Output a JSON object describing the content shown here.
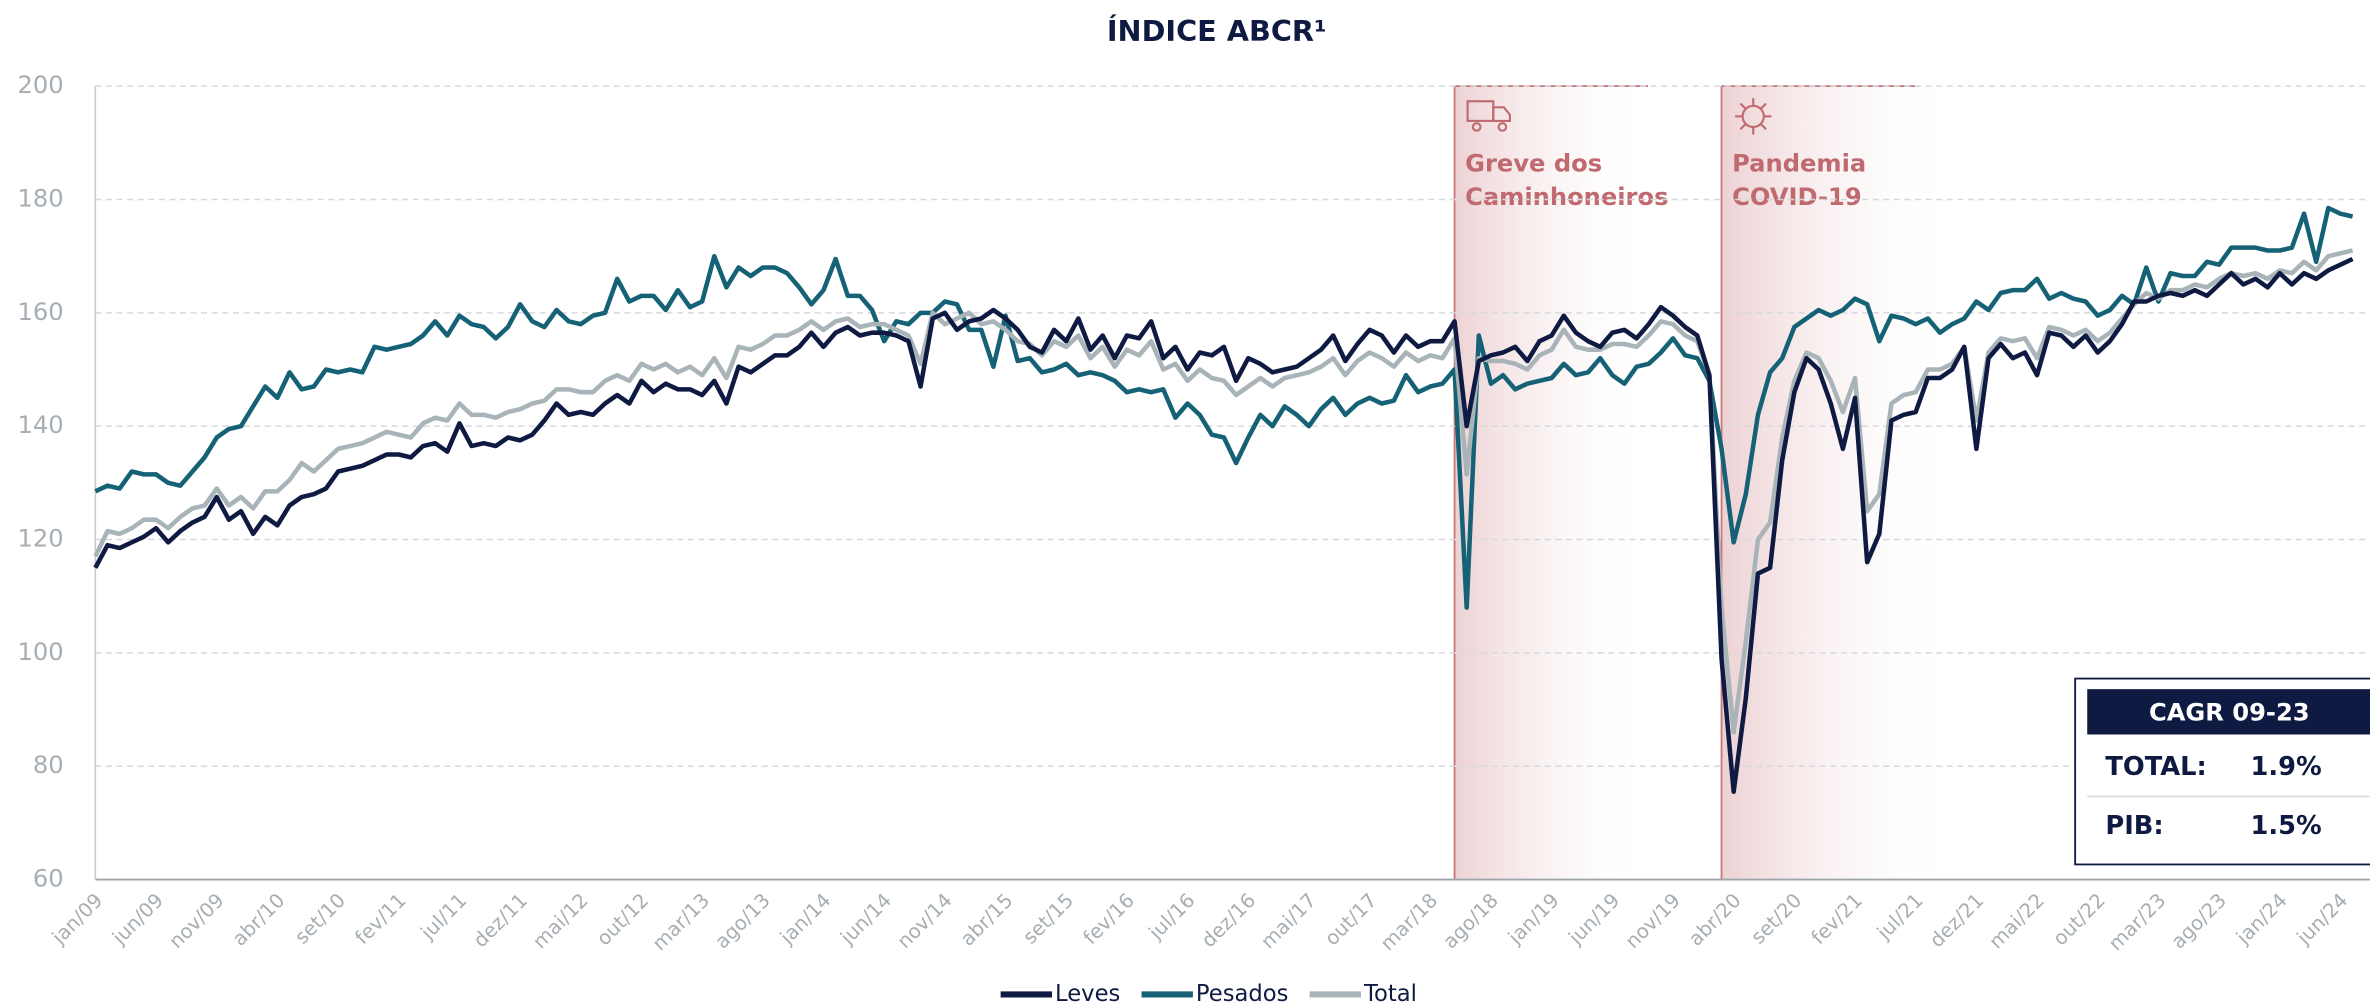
{
  "chart_data": {
    "type": "line",
    "title": "ÍNDICE ABCR¹",
    "categories": [
      "jan/09",
      null,
      null,
      null,
      null,
      "jun/09",
      null,
      null,
      null,
      null,
      "nov/09",
      null,
      null,
      null,
      null,
      "abr/10",
      null,
      null,
      null,
      null,
      "set/10",
      null,
      null,
      null,
      null,
      "fev/11",
      null,
      null,
      null,
      null,
      "jul/11",
      null,
      null,
      null,
      null,
      "dez/11",
      null,
      null,
      null,
      null,
      "mai/12",
      null,
      null,
      null,
      null,
      "out/12",
      null,
      null,
      null,
      null,
      "mar/13",
      null,
      null,
      null,
      null,
      "ago/13",
      null,
      null,
      null,
      null,
      "jan/14",
      null,
      null,
      null,
      null,
      "jun/14",
      null,
      null,
      null,
      null,
      "nov/14",
      null,
      null,
      null,
      null,
      "abr/15",
      null,
      null,
      null,
      null,
      "set/15",
      null,
      null,
      null,
      null,
      "fev/16",
      null,
      null,
      null,
      null,
      "jul/16",
      null,
      null,
      null,
      null,
      "dez/16",
      null,
      null,
      null,
      null,
      "mai/17",
      null,
      null,
      null,
      null,
      "out/17",
      null,
      null,
      null,
      null,
      "mar/18",
      null,
      null,
      null,
      null,
      "ago/18",
      null,
      null,
      null,
      null,
      "jan/19",
      null,
      null,
      null,
      null,
      "jun/19",
      null,
      null,
      null,
      null,
      "nov/19",
      null,
      null,
      null,
      null,
      "abr/20",
      null,
      null,
      null,
      null,
      "set/20",
      null,
      null,
      null,
      null,
      "fev/21",
      null,
      null,
      null,
      null,
      "jul/21",
      null,
      null,
      null,
      null,
      "dez/21",
      null,
      null,
      null,
      null,
      "mai/22",
      null,
      null,
      null,
      null,
      "out/22",
      null,
      null,
      null,
      null,
      "mar/23",
      null,
      null,
      null,
      null,
      "ago/23",
      null,
      null,
      null,
      null,
      "jan/24",
      null,
      null,
      null,
      null,
      "jun/24",
      null
    ],
    "series": [
      {
        "name": "Leves",
        "color": "#0e1a42",
        "values": [
          115,
          119,
          118.5,
          119.5,
          120.5,
          122,
          119.5,
          121.5,
          123,
          124,
          127.5,
          123.5,
          125,
          121,
          124,
          122.5,
          126,
          127.5,
          128,
          129,
          132,
          132.5,
          133,
          134,
          135,
          135,
          134.5,
          136.5,
          137,
          135.5,
          140.5,
          136.5,
          137,
          136.5,
          138,
          137.5,
          138.5,
          141,
          144,
          142,
          142.5,
          142,
          144,
          145.5,
          144,
          148,
          146,
          147.5,
          146.5,
          146.5,
          145.5,
          148,
          144,
          150.5,
          149.5,
          151,
          152.5,
          152.5,
          154,
          156.5,
          154,
          156.5,
          157.5,
          156,
          156.5,
          156.5,
          156,
          155,
          147,
          159,
          160,
          157,
          158.5,
          159,
          160.5,
          159,
          157,
          154,
          153,
          157,
          155,
          159,
          153.5,
          156,
          152,
          156,
          155.5,
          158.5,
          152,
          154,
          150,
          153,
          152.5,
          154,
          148,
          152,
          151,
          149.5,
          150,
          150.5,
          152,
          153.5,
          156,
          151.5,
          154.5,
          157,
          156,
          153,
          156,
          154,
          155,
          155,
          158.5,
          140,
          151.5,
          152.5,
          153,
          154,
          151.5,
          155,
          156,
          159.5,
          156.5,
          155,
          154,
          156.5,
          157,
          155.5,
          158,
          161,
          159.5,
          157.5,
          156,
          149,
          99,
          75.5,
          92,
          114,
          115,
          134,
          146,
          152,
          150,
          144,
          136,
          145,
          116,
          121,
          141,
          142,
          142.5,
          148.5,
          148.5,
          150,
          154,
          136,
          152,
          154.5,
          152,
          153,
          149,
          156.5,
          156,
          154,
          156,
          153,
          155,
          158,
          162,
          162,
          163,
          163.5,
          163,
          164,
          163,
          165,
          167,
          165,
          166,
          164.5,
          167,
          165,
          167,
          166,
          167.5,
          168.5,
          169.5
        ]
      },
      {
        "name": "Pesados",
        "color": "#156175",
        "values": [
          128.5,
          129.5,
          129,
          132,
          131.5,
          131.5,
          130,
          129.5,
          132,
          134.5,
          138,
          139.5,
          140,
          143.5,
          147,
          145,
          149.5,
          146.5,
          147,
          150,
          149.5,
          150,
          149.5,
          154,
          153.5,
          154,
          154.5,
          156,
          158.5,
          156,
          159.5,
          158,
          157.5,
          155.5,
          157.5,
          161.5,
          158.5,
          157.5,
          160.5,
          158.5,
          158,
          159.5,
          160,
          166,
          162,
          163,
          163,
          160.5,
          164,
          161,
          162,
          170,
          164.5,
          168,
          166.5,
          168,
          168,
          167,
          164.5,
          161.5,
          164,
          169.5,
          163,
          163,
          160.5,
          155,
          158.5,
          158,
          160,
          160,
          162,
          161.5,
          157,
          157,
          150.5,
          159.5,
          151.5,
          152,
          149.5,
          150,
          151,
          149,
          149.5,
          149,
          148,
          146,
          146.5,
          146,
          146.5,
          141.5,
          144,
          142,
          138.5,
          138,
          133.5,
          138,
          142,
          140,
          143.5,
          142,
          140,
          143,
          145,
          142,
          144,
          145,
          144,
          144.5,
          149,
          146,
          147,
          147.5,
          150,
          108,
          156,
          147.5,
          149,
          146.5,
          147.5,
          148,
          148.5,
          151,
          149,
          149.5,
          152,
          149,
          147.5,
          150.5,
          151,
          153,
          155.5,
          152.5,
          152,
          148,
          136,
          119.5,
          128,
          142,
          149.5,
          152,
          157.5,
          159,
          160.5,
          159.5,
          160.5,
          162.5,
          161.5,
          155,
          159.5,
          159,
          158,
          159,
          156.5,
          158,
          159,
          162,
          160.5,
          163.5,
          164,
          164,
          166,
          162.5,
          163.5,
          162.5,
          162,
          159.5,
          160.5,
          163,
          161.5,
          168,
          162,
          167,
          166.5,
          166.5,
          169,
          168.5,
          171.5,
          171.5,
          171.5,
          171,
          171,
          171.5,
          177.5,
          169,
          178.5,
          177.5,
          177
        ]
      },
      {
        "name": "Total",
        "color": "#a9b4b9",
        "values": [
          117,
          121.5,
          121,
          122,
          123.5,
          123.5,
          122,
          124,
          125.5,
          126,
          129,
          126,
          127.5,
          125.5,
          128.5,
          128.5,
          130.5,
          133.5,
          132,
          134,
          136,
          136.5,
          137,
          138,
          139,
          138.5,
          138,
          140.5,
          141.5,
          141,
          144,
          142,
          142,
          141.5,
          142.5,
          143,
          144,
          144.5,
          146.5,
          146.5,
          146,
          146,
          148,
          149,
          148,
          151,
          150,
          151,
          149.5,
          150.5,
          149,
          152,
          148.5,
          154,
          153.5,
          154.5,
          156,
          156,
          157,
          158.5,
          157,
          158.5,
          159,
          157.5,
          158,
          158,
          157,
          156,
          151,
          160,
          158,
          159,
          160,
          158,
          158.5,
          157,
          155,
          154.5,
          152.5,
          155,
          154,
          156,
          152,
          154,
          150.5,
          153.5,
          152.5,
          155,
          150,
          151,
          148,
          150,
          148.5,
          148,
          145.5,
          147,
          148.5,
          147,
          148.5,
          149,
          149.5,
          150.5,
          152,
          149,
          151.5,
          153,
          152,
          150.5,
          153,
          151.5,
          152.5,
          152,
          155.5,
          131.5,
          152,
          151.5,
          151.5,
          151,
          150,
          152.5,
          153.5,
          157,
          154,
          153.5,
          153.5,
          154.5,
          154.5,
          154,
          156,
          158.5,
          158,
          156,
          155,
          149,
          108,
          86,
          102,
          120,
          123,
          138,
          148,
          153,
          152,
          148,
          142.5,
          148.5,
          125,
          128,
          144,
          145.5,
          146,
          150,
          150,
          151,
          154,
          141,
          153,
          155.5,
          155,
          155.5,
          152,
          157.5,
          157,
          156,
          157,
          155,
          156.5,
          159,
          161.5,
          163.5,
          162.5,
          164,
          164,
          165,
          164.5,
          166,
          167,
          166.5,
          167,
          166,
          167.5,
          167,
          169,
          167.5,
          170,
          170.5,
          171
        ]
      }
    ],
    "ylim": [
      60,
      200
    ],
    "yticks": [
      60,
      80,
      100,
      120,
      140,
      160,
      180,
      200
    ],
    "grid": true,
    "annotations": [
      {
        "lines": [
          "Greve dos",
          "Caminhoneiros"
        ]
      },
      {
        "lines": [
          "Pandemia",
          "COVID-19"
        ]
      }
    ],
    "cagr_box": {
      "title": "CAGR 09-23",
      "rows": [
        [
          "TOTAL:",
          "1.9%"
        ],
        [
          "PIB:",
          "1.5%"
        ]
      ]
    }
  }
}
